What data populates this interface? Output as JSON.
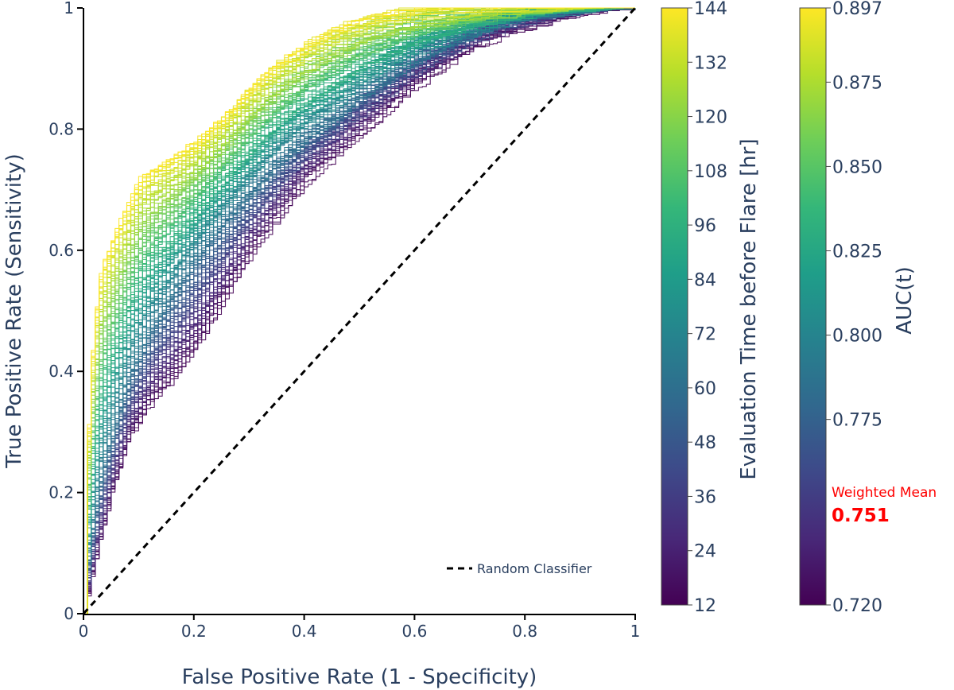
{
  "chart_data": {
    "type": "line",
    "xlabel": "False Positive Rate (1 - Specificity)",
    "ylabel": "True Positive Rate (Sensitivity)",
    "xlim": [
      0,
      1
    ],
    "ylim": [
      0,
      1
    ],
    "x_ticks": [
      "0",
      "0.2",
      "0.4",
      "0.6",
      "0.8",
      "1"
    ],
    "y_ticks": [
      "0",
      "0.2",
      "0.4",
      "0.6",
      "0.8",
      "1"
    ],
    "grid": false,
    "series_count": 133,
    "time_range_hr": [
      12,
      144
    ],
    "series_description": "One ROC curve per evaluation time before flare, coloured by evaluation time (viridis).",
    "representative_curves": [
      {
        "time_hr": 12,
        "x": [
          0,
          0.02,
          0.05,
          0.08,
          0.12,
          0.16,
          0.2,
          0.25,
          0.3,
          0.35,
          0.4,
          0.45,
          0.5,
          0.55,
          0.6,
          0.65,
          0.7,
          0.75,
          0.8,
          0.85,
          0.9,
          0.95,
          1
        ],
        "y": [
          0,
          0.09,
          0.2,
          0.29,
          0.35,
          0.39,
          0.44,
          0.52,
          0.6,
          0.66,
          0.72,
          0.76,
          0.8,
          0.84,
          0.88,
          0.91,
          0.94,
          0.96,
          0.97,
          0.98,
          0.99,
          0.995,
          1
        ]
      },
      {
        "time_hr": 60,
        "x": [
          0,
          0.01,
          0.03,
          0.05,
          0.08,
          0.12,
          0.16,
          0.2,
          0.25,
          0.3,
          0.35,
          0.4,
          0.45,
          0.5,
          0.55,
          0.6,
          0.65,
          0.7,
          0.75,
          0.8,
          0.85,
          0.9,
          0.95,
          1
        ],
        "y": [
          0,
          0.12,
          0.23,
          0.3,
          0.39,
          0.47,
          0.53,
          0.59,
          0.65,
          0.7,
          0.75,
          0.79,
          0.82,
          0.86,
          0.89,
          0.92,
          0.94,
          0.96,
          0.975,
          0.985,
          0.99,
          0.995,
          0.998,
          1
        ]
      },
      {
        "time_hr": 144,
        "x": [
          0,
          0.005,
          0.01,
          0.02,
          0.03,
          0.05,
          0.08,
          0.1,
          0.12,
          0.15,
          0.2,
          0.25,
          0.3,
          0.35,
          0.4,
          0.45,
          0.5,
          0.55,
          0.6,
          0.7,
          0.8,
          0.9,
          1
        ],
        "y": [
          0,
          0.26,
          0.38,
          0.5,
          0.57,
          0.62,
          0.68,
          0.72,
          0.735,
          0.75,
          0.78,
          0.82,
          0.87,
          0.91,
          0.94,
          0.965,
          0.98,
          0.99,
          0.995,
          0.998,
          0.999,
          1,
          1
        ]
      }
    ],
    "reference_line": {
      "name": "Random Classifier",
      "x": [
        0,
        1
      ],
      "y": [
        0,
        1
      ],
      "style": "dashed",
      "color": "#000000"
    },
    "colorbars": [
      {
        "title": "Evaluation Time before Flare [hr]",
        "range": [
          12,
          144
        ],
        "tick_values": [
          12,
          24,
          36,
          48,
          60,
          72,
          84,
          96,
          108,
          120,
          132,
          144
        ],
        "tick_labels": [
          "12",
          "24",
          "36",
          "48",
          "60",
          "72",
          "84",
          "96",
          "108",
          "120",
          "132",
          "144"
        ],
        "colorscale": "viridis"
      },
      {
        "title": "AUC(t)",
        "range": [
          0.72,
          0.897
        ],
        "tick_values": [
          0.72,
          0.775,
          0.8,
          0.825,
          0.85,
          0.875,
          0.897
        ],
        "tick_labels": [
          "0.720",
          "0.775",
          "0.800",
          "0.825",
          "0.850",
          "0.875",
          "0.897"
        ],
        "colorscale": "viridis"
      }
    ],
    "annotation": {
      "label": "Weighted Mean",
      "value": "0.751",
      "value_numeric": 0.751,
      "color": "#ff0000"
    }
  },
  "viridis_stops": [
    "#440154",
    "#482878",
    "#3e4989",
    "#31688e",
    "#26828e",
    "#1f9e89",
    "#35b779",
    "#6ece58",
    "#b5de2b",
    "#fde725"
  ]
}
